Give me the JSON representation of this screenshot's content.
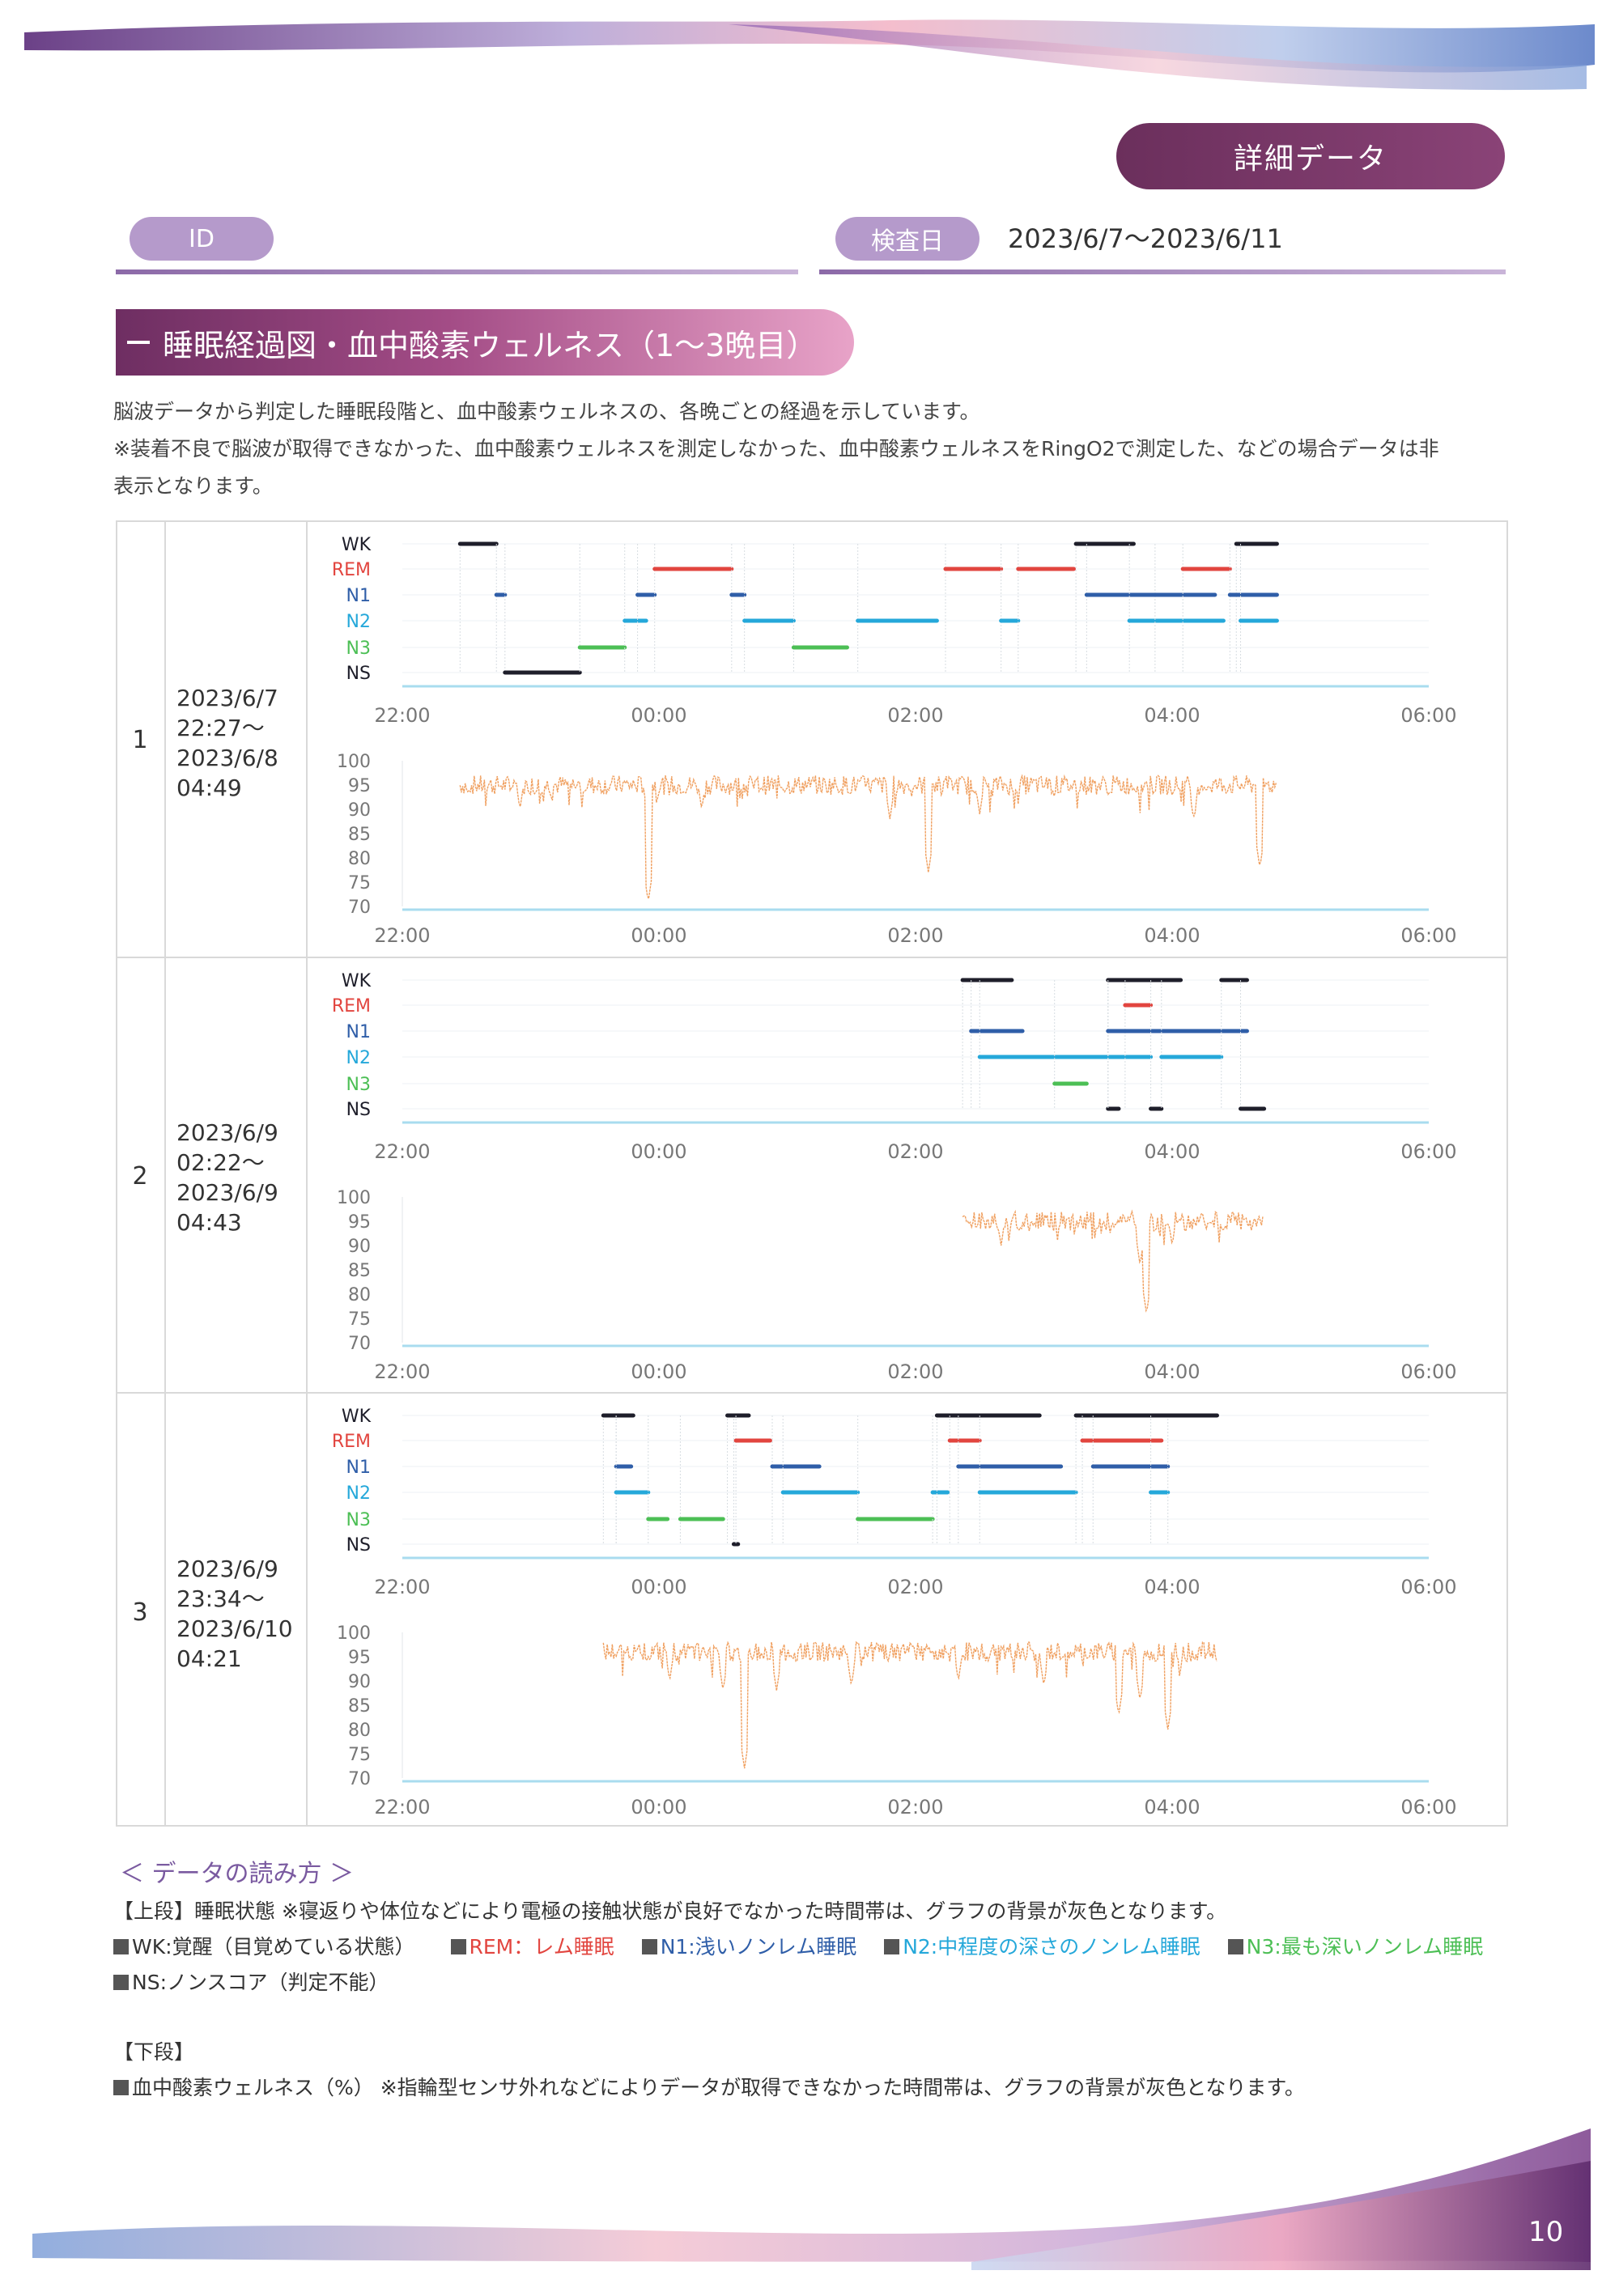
{
  "header": {
    "detail_button": "詳細データ",
    "id_label": "ID",
    "exam_date_label": "検査日",
    "exam_date_value": "2023/6/7〜2023/6/11"
  },
  "section": {
    "title": "睡眠経過図・血中酸素ウェルネス（1〜3晩目）",
    "description_line1": "脳波データから判定した睡眠段階と、血中酸素ウェルネスの、各晩ごとの経過を示しています。",
    "description_line2": "※装着不良で脳波が取得できなかった、血中酸素ウェルネスを測定しなかった、血中酸素ウェルネスをRingO2で測定した、などの場合データは非",
    "description_line3": "表示となります。"
  },
  "colors": {
    "WK": "#1e1e2a",
    "REM": "#e2453f",
    "N1": "#2f5ea8",
    "N2": "#25a8da",
    "N3": "#4cbf55",
    "NS": "#1e1e2a",
    "spo2": "#f0a060",
    "axis": "#a9dcef"
  },
  "nights": [
    {
      "number": "1",
      "date_lines": [
        "2023/6/7",
        "22:27〜",
        "2023/6/8",
        "04:49"
      ],
      "stage_labels": [
        "WK",
        "REM",
        "N1",
        "N2",
        "N3",
        "NS"
      ],
      "x_ticks": [
        "22:00",
        "00:00",
        "02:00",
        "04:00",
        "06:00"
      ],
      "y_ticks": [
        "100",
        "95",
        "90",
        "85",
        "80",
        "75",
        "70"
      ],
      "chart_data": {
        "type": "line",
        "x_range": [
          "22:00",
          "06:00"
        ],
        "hypnogram_segments": [
          {
            "stage": "WK",
            "start": "22:27",
            "end": "22:44"
          },
          {
            "stage": "N1",
            "start": "22:44",
            "end": "22:48"
          },
          {
            "stage": "NS",
            "start": "22:48",
            "end": "23:23"
          },
          {
            "stage": "N3",
            "start": "23:23",
            "end": "23:44"
          },
          {
            "stage": "N2",
            "start": "23:44",
            "end": "23:54"
          },
          {
            "stage": "N1",
            "start": "23:50",
            "end": "23:58"
          },
          {
            "stage": "REM",
            "start": "23:58",
            "end": "00:34"
          },
          {
            "stage": "N1",
            "start": "00:34",
            "end": "00:40"
          },
          {
            "stage": "N2",
            "start": "00:40",
            "end": "01:03"
          },
          {
            "stage": "N3",
            "start": "01:03",
            "end": "01:28"
          },
          {
            "stage": "N2",
            "start": "01:33",
            "end": "02:10"
          },
          {
            "stage": "REM",
            "start": "02:14",
            "end": "02:40"
          },
          {
            "stage": "N2",
            "start": "02:40",
            "end": "02:48"
          },
          {
            "stage": "REM",
            "start": "02:48",
            "end": "03:14"
          },
          {
            "stage": "WK",
            "start": "03:15",
            "end": "03:42"
          },
          {
            "stage": "N1",
            "start": "03:20",
            "end": "03:52"
          },
          {
            "stage": "N2",
            "start": "03:40",
            "end": "04:24"
          },
          {
            "stage": "N1",
            "start": "03:52",
            "end": "04:20"
          },
          {
            "stage": "REM",
            "start": "04:05",
            "end": "04:27"
          },
          {
            "stage": "WK",
            "start": "04:30",
            "end": "04:49"
          },
          {
            "stage": "N1",
            "start": "04:27",
            "end": "04:49"
          },
          {
            "stage": "N2",
            "start": "04:32",
            "end": "04:49"
          }
        ],
        "spo2_range": [
          "22:27",
          "04:49"
        ],
        "spo2_baseline": 95,
        "spo2_dips": [
          {
            "time": "22:55",
            "min": 90
          },
          {
            "time": "23:55",
            "min": 71
          },
          {
            "time": "00:20",
            "min": 90
          },
          {
            "time": "01:48",
            "min": 88
          },
          {
            "time": "02:06",
            "min": 77
          },
          {
            "time": "02:30",
            "min": 89
          },
          {
            "time": "04:10",
            "min": 88
          },
          {
            "time": "04:41",
            "min": 78
          }
        ]
      }
    },
    {
      "number": "2",
      "date_lines": [
        "2023/6/9",
        "02:22〜",
        "2023/6/9",
        "04:43"
      ],
      "stage_labels": [
        "WK",
        "REM",
        "N1",
        "N2",
        "N3",
        "NS"
      ],
      "x_ticks": [
        "22:00",
        "00:00",
        "02:00",
        "04:00",
        "06:00"
      ],
      "y_ticks": [
        "100",
        "95",
        "90",
        "85",
        "80",
        "75",
        "70"
      ],
      "chart_data": {
        "type": "line",
        "x_range": [
          "22:00",
          "06:00"
        ],
        "hypnogram_segments": [
          {
            "stage": "WK",
            "start": "02:22",
            "end": "02:45"
          },
          {
            "stage": "N1",
            "start": "02:26",
            "end": "02:50"
          },
          {
            "stage": "N2",
            "start": "02:30",
            "end": "03:50"
          },
          {
            "stage": "N3",
            "start": "03:05",
            "end": "03:20"
          },
          {
            "stage": "NS",
            "start": "03:30",
            "end": "03:35"
          },
          {
            "stage": "WK",
            "start": "03:30",
            "end": "04:04"
          },
          {
            "stage": "REM",
            "start": "03:38",
            "end": "03:50"
          },
          {
            "stage": "N1",
            "start": "03:30",
            "end": "04:35"
          },
          {
            "stage": "NS",
            "start": "03:50",
            "end": "03:55"
          },
          {
            "stage": "N2",
            "start": "03:55",
            "end": "04:23"
          },
          {
            "stage": "WK",
            "start": "04:23",
            "end": "04:35"
          },
          {
            "stage": "NS",
            "start": "04:32",
            "end": "04:43"
          }
        ],
        "spo2_range": [
          "02:22",
          "04:43"
        ],
        "spo2_baseline": 95,
        "spo2_dips": [
          {
            "time": "02:40",
            "min": 90
          },
          {
            "time": "03:45",
            "min": 86
          },
          {
            "time": "03:48",
            "min": 76
          },
          {
            "time": "04:00",
            "min": 90
          }
        ]
      }
    },
    {
      "number": "3",
      "date_lines": [
        "2023/6/9",
        "23:34〜",
        "2023/6/10",
        "04:21"
      ],
      "stage_labels": [
        "WK",
        "REM",
        "N1",
        "N2",
        "N3",
        "NS"
      ],
      "x_ticks": [
        "22:00",
        "00:00",
        "02:00",
        "04:00",
        "06:00"
      ],
      "y_ticks": [
        "100",
        "95",
        "90",
        "85",
        "80",
        "75",
        "70"
      ],
      "chart_data": {
        "type": "line",
        "x_range": [
          "22:00",
          "06:00"
        ],
        "hypnogram_segments": [
          {
            "stage": "WK",
            "start": "23:34",
            "end": "23:48"
          },
          {
            "stage": "N1",
            "start": "23:40",
            "end": "23:47"
          },
          {
            "stage": "N2",
            "start": "23:40",
            "end": "23:55"
          },
          {
            "stage": "N3",
            "start": "23:55",
            "end": "00:04"
          },
          {
            "stage": "N3",
            "start": "00:10",
            "end": "00:30"
          },
          {
            "stage": "NS",
            "start": "00:35",
            "end": "00:37"
          },
          {
            "stage": "WK",
            "start": "00:32",
            "end": "00:42"
          },
          {
            "stage": "REM",
            "start": "00:36",
            "end": "00:52"
          },
          {
            "stage": "N1",
            "start": "00:53",
            "end": "01:15"
          },
          {
            "stage": "N2",
            "start": "00:58",
            "end": "01:33"
          },
          {
            "stage": "N3",
            "start": "01:33",
            "end": "02:08"
          },
          {
            "stage": "N2",
            "start": "02:08",
            "end": "02:15"
          },
          {
            "stage": "WK",
            "start": "02:10",
            "end": "02:58"
          },
          {
            "stage": "REM",
            "start": "02:16",
            "end": "02:30"
          },
          {
            "stage": "N1",
            "start": "02:20",
            "end": "03:08"
          },
          {
            "stage": "N2",
            "start": "02:30",
            "end": "03:15"
          },
          {
            "stage": "WK",
            "start": "03:15",
            "end": "03:58"
          },
          {
            "stage": "REM",
            "start": "03:18",
            "end": "03:55"
          },
          {
            "stage": "N1",
            "start": "03:23",
            "end": "03:58"
          },
          {
            "stage": "N2",
            "start": "03:50",
            "end": "03:58"
          },
          {
            "stage": "WK",
            "start": "03:58",
            "end": "04:21"
          }
        ],
        "spo2_range": [
          "23:34",
          "04:21"
        ],
        "spo2_baseline": 96,
        "spo2_dips": [
          {
            "time": "00:05",
            "min": 90
          },
          {
            "time": "00:30",
            "min": 88
          },
          {
            "time": "00:40",
            "min": 72
          },
          {
            "time": "00:55",
            "min": 88
          },
          {
            "time": "01:30",
            "min": 89
          },
          {
            "time": "02:20",
            "min": 90
          },
          {
            "time": "03:00",
            "min": 89
          },
          {
            "time": "03:35",
            "min": 83
          },
          {
            "time": "03:45",
            "min": 86
          },
          {
            "time": "03:58",
            "min": 80
          }
        ]
      }
    }
  ],
  "legend": {
    "title": "＜ データの読み方 ＞",
    "upper_line": "【上段】睡眠状態 ※寝返りや体位などにより電極の接触状態が良好でなかった時間帯は、グラフの背景が灰色となります。",
    "wk": "WK:覚醒（目覚めている状態）",
    "rem": "REM：レム睡眠",
    "n1": "N1:浅いノンレム睡眠",
    "n2": "N2:中程度の深さのノンレム睡眠",
    "n3": "N3:最も深いノンレム睡眠",
    "ns": "NS:ノンスコア（判定不能）",
    "lower_heading": "【下段】",
    "lower_line": "血中酸素ウェルネス（%） ※指輪型センサ外れなどによりデータが取得できなかった時間帯は、グラフの背景が灰色となります。"
  },
  "page_number": "10"
}
